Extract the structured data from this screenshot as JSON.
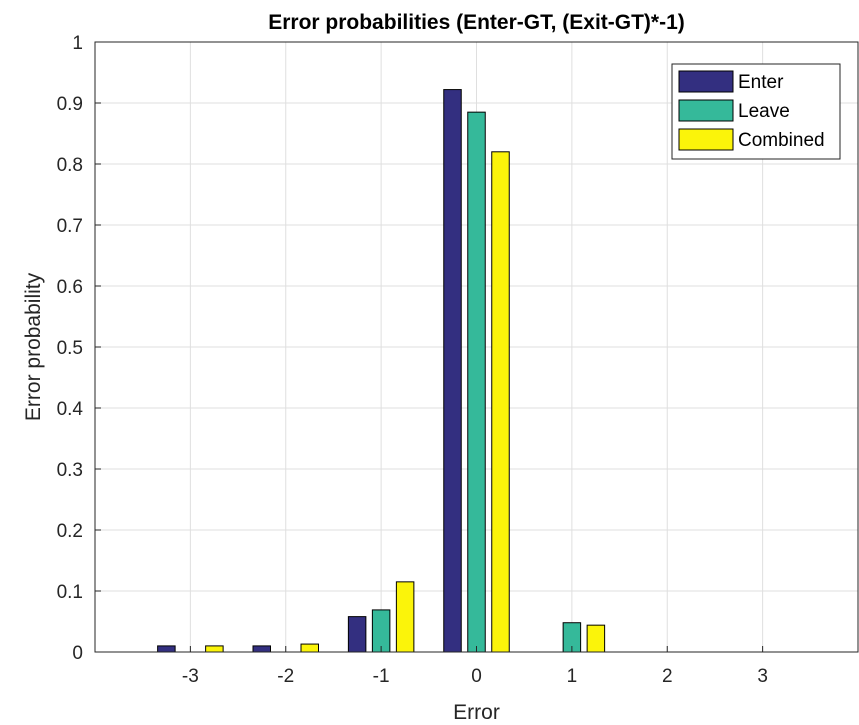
{
  "chart_data": {
    "type": "bar",
    "title": "Error probabilities (Enter-GT, (Exit-GT)*-1)",
    "xlabel": "Error",
    "ylabel": "Error probability",
    "x": [
      -3,
      -2,
      -1,
      0,
      1,
      2,
      3
    ],
    "x_tick_labels": [
      "-3",
      "-2",
      "-1",
      "0",
      "1",
      "2",
      "3"
    ],
    "xlim": [
      -4,
      4
    ],
    "ylim": [
      0,
      1
    ],
    "y_ticks": [
      0,
      0.1,
      0.2,
      0.3,
      0.4,
      0.5,
      0.6,
      0.7,
      0.8,
      0.9,
      1
    ],
    "y_tick_labels": [
      "0",
      "0.1",
      "0.2",
      "0.3",
      "0.4",
      "0.5",
      "0.6",
      "0.7",
      "0.8",
      "0.9",
      "1"
    ],
    "grid": true,
    "legend_position": "top-right",
    "series": [
      {
        "name": "Enter",
        "color": "#332f80",
        "values": [
          0.01,
          0.01,
          0.058,
          0.922,
          0,
          0,
          0
        ]
      },
      {
        "name": "Leave",
        "color": "#35b99a",
        "values": [
          0,
          0,
          0.069,
          0.885,
          0.048,
          0,
          0
        ]
      },
      {
        "name": "Combined",
        "color": "#fbf40a",
        "values": [
          0.01,
          0.013,
          0.115,
          0.82,
          0.044,
          0,
          0
        ]
      }
    ]
  }
}
